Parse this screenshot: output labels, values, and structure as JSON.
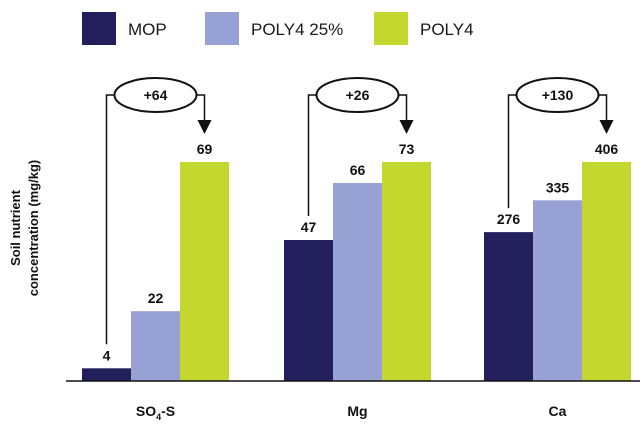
{
  "chart_data": {
    "type": "bar",
    "categories": [
      "SO4-S",
      "Mg",
      "Ca"
    ],
    "category_labels": [
      {
        "main": "SO",
        "sub": "4",
        "rest": "-S"
      },
      {
        "main": "Mg",
        "sub": "",
        "rest": ""
      },
      {
        "main": "Ca",
        "sub": "",
        "rest": ""
      }
    ],
    "series": [
      {
        "name": "MOP",
        "values": [
          4,
          47,
          276
        ],
        "color": "#231f5c"
      },
      {
        "name": "POLY4 25%",
        "values": [
          22,
          66,
          335
        ],
        "color": "#98a1d3"
      },
      {
        "name": "POLY4",
        "values": [
          69,
          73,
          406
        ],
        "color": "#c3d72f"
      }
    ],
    "annotations": [
      "+64",
      "+26",
      "+130"
    ],
    "ylabel": [
      "Soil nutrient",
      "concentration (mg/kg)"
    ],
    "legend_position": "top",
    "grid": false
  }
}
